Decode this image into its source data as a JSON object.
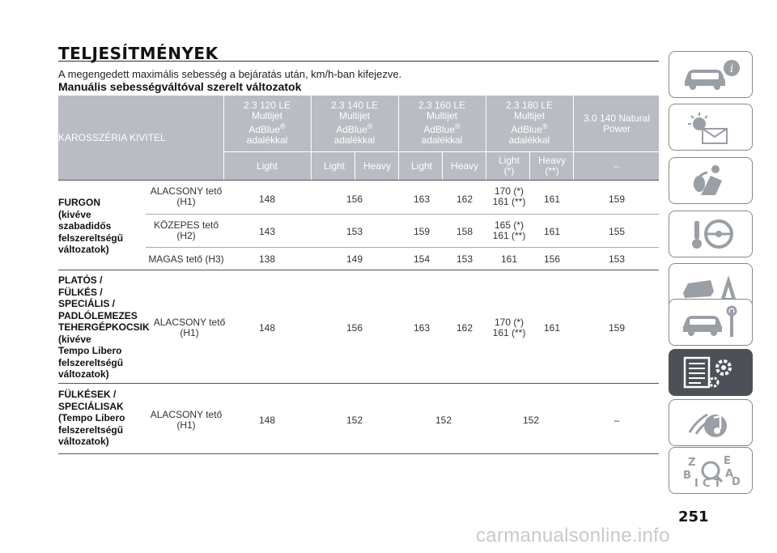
{
  "title": "TELJESÍTMÉNYEK",
  "subtitle": "A megengedett maximális sebesség a bejáratás után, km/h-ban kifejezve.",
  "section_title": "Manuális sebességváltóval szerelt változatok",
  "table": {
    "corner_header": "KAROSSZÉRIA KIVITEL",
    "engines": [
      {
        "l1": "2.3 120 LE",
        "l2": "Multijet",
        "l3": "AdBlue",
        "reg": "®",
        "l4": "adalékkal"
      },
      {
        "l1": "2.3 140 LE",
        "l2": "Multijet",
        "l3": "AdBlue",
        "reg": "®",
        "l4": "adalékkal"
      },
      {
        "l1": "2.3 160 LE",
        "l2": "Multijet",
        "l3": "AdBlue",
        "reg": "®",
        "l4": "adalékkal"
      },
      {
        "l1": "2.3 180 LE",
        "l2": "Multijet",
        "l3": "AdBlue",
        "reg": "®",
        "l4": "adalékkal"
      },
      {
        "l1": "3.0 140 Natural",
        "l2": "Power"
      }
    ],
    "subheaders": [
      {
        "l1": "Light"
      },
      {
        "l1": "Light"
      },
      {
        "l1": "Heavy"
      },
      {
        "l1": "Light"
      },
      {
        "l1": "Heavy"
      },
      {
        "l1": "Light",
        "l2": "(*)"
      },
      {
        "l1": "Heavy",
        "l2": "(**)"
      },
      {
        "l1": "–"
      }
    ],
    "groups": [
      {
        "vehicle": [
          "FURGON",
          "(kivéve",
          "szabadidős",
          "felszereltségű",
          "változatok)"
        ],
        "rows": [
          {
            "roof": [
              "ALACSONY tető",
              "(H1)"
            ],
            "values": [
              "148",
              "156",
              "163",
              "162",
              "170 (*)",
              "161 (**)",
              "161",
              "159"
            ]
          },
          {
            "roof": [
              "KÖZEPES tető",
              "(H2)"
            ],
            "values": [
              "143",
              "153",
              "159",
              "158",
              "165 (*)",
              "161 (**)",
              "161",
              "155"
            ]
          },
          {
            "roof": [
              "MAGAS tető (H3)"
            ],
            "values": [
              "138",
              "149",
              "154",
              "153",
              "161",
              "156",
              "153"
            ]
          }
        ]
      },
      {
        "vehicle": [
          "PLATÓS /",
          "FÜLKÉS /",
          "SPECIÁLIS /",
          "PADLÓLEMEZES",
          "TEHERGÉPKOCSIK",
          "(kivéve",
          "Tempo Libero",
          "felszereltségű",
          "változatok)"
        ],
        "rows": [
          {
            "roof": [
              "ALACSONY tető",
              "(H1)"
            ],
            "values": [
              "148",
              "156",
              "163",
              "162",
              "170 (*)",
              "161 (**)",
              "161",
              "159"
            ]
          }
        ]
      },
      {
        "vehicle": [
          "FÜLKÉSEK /",
          "SPECIÁLISAK",
          "(Tempo Libero",
          "felszereltségű",
          "változatok)"
        ],
        "rows": [
          {
            "roof": [
              "ALACSONY tető",
              "(H1)"
            ],
            "values": [
              "148",
              "152",
              "152",
              "152",
              "–"
            ]
          }
        ]
      }
    ]
  },
  "sidebar": {
    "tabs": [
      {
        "icon": "car-info-icon"
      },
      {
        "icon": "warning-lights-icon"
      },
      {
        "icon": "safety-airbag-icon"
      },
      {
        "icon": "steering-key-icon"
      },
      {
        "icon": "emergency-icon"
      },
      {
        "icon": "maintenance-icon"
      },
      {
        "icon": "technical-data-icon",
        "active": true
      },
      {
        "icon": "multimedia-icon"
      },
      {
        "icon": "index-icon"
      }
    ]
  },
  "page_number": "251",
  "watermark": "carmanualsonline.info"
}
